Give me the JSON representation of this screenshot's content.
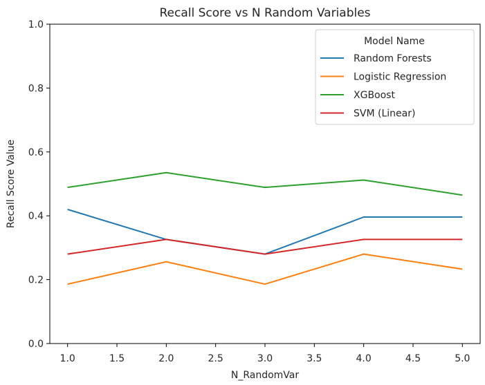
{
  "chart_data": {
    "type": "line",
    "title": "Recall Score vs N Random Variables",
    "xlabel": "N_RandomVar",
    "ylabel": "Recall Score Value",
    "x": [
      1.0,
      2.0,
      3.0,
      4.0,
      5.0
    ],
    "xlim": [
      0.82,
      5.18
    ],
    "ylim": [
      0.0,
      1.0
    ],
    "xticks": [
      "1.0",
      "1.5",
      "2.0",
      "2.5",
      "3.0",
      "3.5",
      "4.0",
      "4.5",
      "5.0"
    ],
    "yticks": [
      "0.0",
      "0.2",
      "0.4",
      "0.6",
      "0.8",
      "1.0"
    ],
    "grid": false,
    "legend": {
      "title": "Model Name",
      "placement": "top-right"
    },
    "series": [
      {
        "name": "Random Forests",
        "color": "#1f77b4",
        "values": [
          0.42,
          0.326,
          0.28,
          0.396,
          0.396
        ]
      },
      {
        "name": "Logistic Regression",
        "color": "#ff7f0e",
        "values": [
          0.186,
          0.256,
          0.186,
          0.28,
          0.233
        ]
      },
      {
        "name": "XGBoost",
        "color": "#2ca02c",
        "values": [
          0.489,
          0.535,
          0.489,
          0.512,
          0.465
        ]
      },
      {
        "name": "SVM (Linear)",
        "color": "#d62728",
        "values": [
          0.28,
          0.326,
          0.28,
          0.326,
          0.326
        ]
      }
    ]
  }
}
